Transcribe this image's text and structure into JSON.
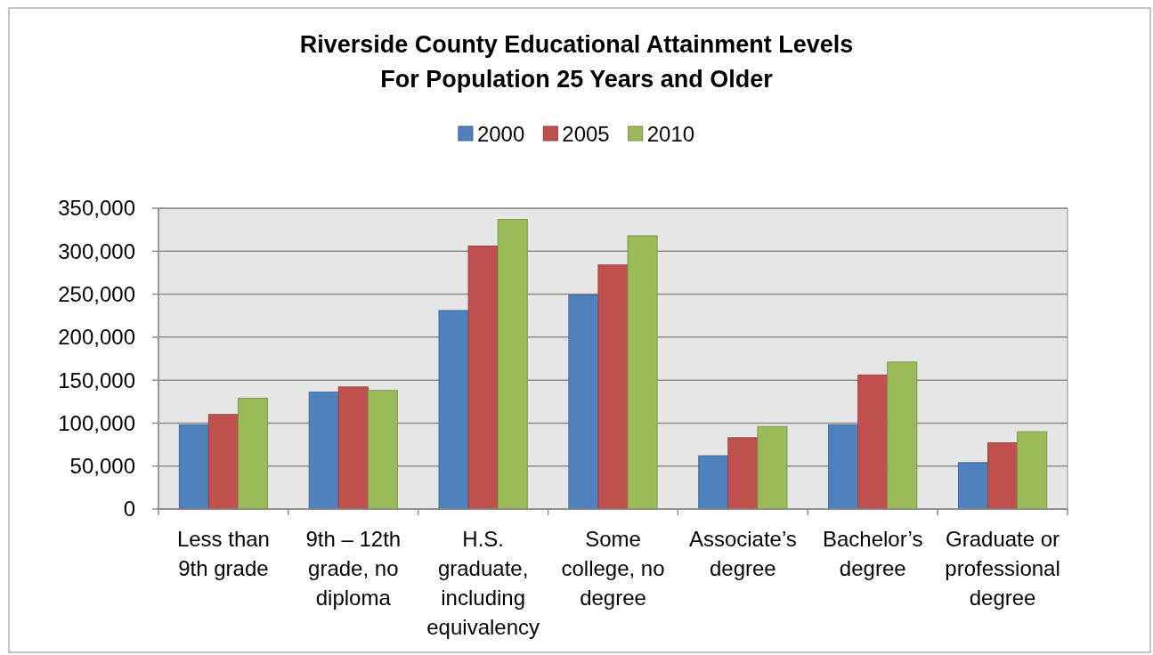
{
  "chart_data": {
    "type": "bar",
    "title": "Riverside County Educational Attainment Levels",
    "subtitle": "For Population 25 Years and Older",
    "categories": [
      "Less than 9th grade",
      "9th – 12th grade, no diploma",
      "H.S. graduate, including equivalency",
      "Some college, no degree",
      "Associate’s degree",
      "Bachelor’s degree",
      "Graduate or professional degree"
    ],
    "series": [
      {
        "name": "2000",
        "color": "#4f81bd",
        "values": [
          98000,
          136000,
          231000,
          249000,
          62000,
          98000,
          54000
        ]
      },
      {
        "name": "2005",
        "color": "#c0504d",
        "values": [
          110000,
          142000,
          306000,
          284000,
          83000,
          156000,
          77000
        ]
      },
      {
        "name": "2010",
        "color": "#9bbb59",
        "values": [
          129000,
          138000,
          337000,
          318000,
          96000,
          171000,
          90000
        ]
      }
    ],
    "ylim": [
      0,
      350000
    ],
    "yticks": [
      {
        "value": 0,
        "label": "0"
      },
      {
        "value": 50000,
        "label": "50,000"
      },
      {
        "value": 100000,
        "label": "100,000"
      },
      {
        "value": 150000,
        "label": "150,000"
      },
      {
        "value": 200000,
        "label": "200,000"
      },
      {
        "value": 250000,
        "label": "250,000"
      },
      {
        "value": 300000,
        "label": "300,000"
      },
      {
        "value": 350000,
        "label": "350,000"
      }
    ],
    "grid": "y",
    "legend": "top"
  }
}
